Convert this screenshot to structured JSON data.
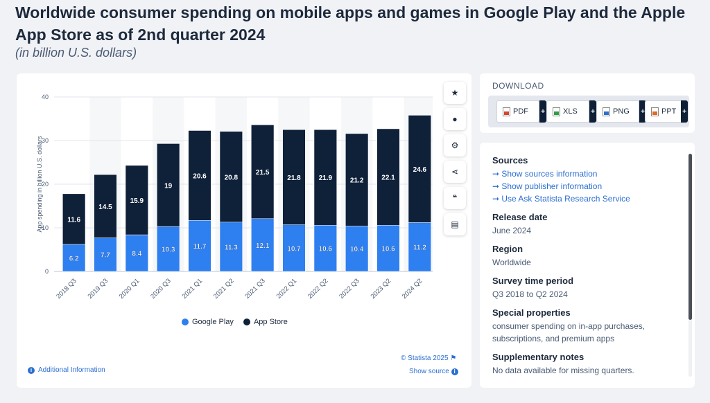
{
  "title": "Worldwide consumer spending on mobile apps and games in Google Play and the Apple App Store as of 2nd quarter 2024",
  "subtitle": "(in billion U.S. dollars)",
  "tools": [
    {
      "icon": "star-icon",
      "glyph": "★"
    },
    {
      "icon": "bell-icon",
      "glyph": "●"
    },
    {
      "icon": "gear-icon",
      "glyph": "⚙"
    },
    {
      "icon": "share-icon",
      "glyph": "⋖"
    },
    {
      "icon": "quote-icon",
      "glyph": "❝"
    },
    {
      "icon": "print-icon",
      "glyph": "▤"
    }
  ],
  "chart_data": {
    "type": "bar",
    "stacked": true,
    "categories": [
      "2018 Q3",
      "2019 Q3",
      "2020 Q1",
      "2020 Q3",
      "2021 Q1",
      "2021 Q2",
      "2021 Q3",
      "2022 Q1",
      "2022 Q2",
      "2022 Q3",
      "2023 Q2",
      "2024 Q2"
    ],
    "series": [
      {
        "name": "Google Play",
        "color": "#2e7ff0",
        "values": [
          6.2,
          7.7,
          8.4,
          10.3,
          11.7,
          11.3,
          12.1,
          10.7,
          10.6,
          10.4,
          10.6,
          11.2
        ]
      },
      {
        "name": "App Store",
        "color": "#0f2039",
        "values": [
          11.6,
          14.5,
          15.9,
          19,
          20.6,
          20.8,
          21.5,
          21.8,
          21.9,
          21.2,
          22.1,
          24.6
        ]
      }
    ],
    "ylabel": "App spending in billion U.S. dollars",
    "xlabel": "",
    "ylim": [
      0,
      40
    ],
    "yticks": [
      0,
      10,
      20,
      30,
      40
    ],
    "grid": true,
    "legend_position": "bottom"
  },
  "legend": [
    {
      "label": "Google Play",
      "color": "#2e7ff0"
    },
    {
      "label": "App Store",
      "color": "#0f2039"
    }
  ],
  "copyright": "© Statista 2025",
  "show_source": "Show source",
  "additional_info": "Additional Information",
  "download": {
    "title": "DOWNLOAD",
    "buttons": [
      {
        "label": "PDF",
        "color": "#d9452b"
      },
      {
        "label": "XLS",
        "color": "#2f9e44"
      },
      {
        "label": "PNG",
        "color": "#2b6fd1"
      },
      {
        "label": "PPT",
        "color": "#e06a1f"
      }
    ],
    "plus": "+"
  },
  "info": {
    "sources_h": "Sources",
    "links": [
      "Show sources information",
      "Show publisher information",
      "Use Ask Statista Research Service"
    ],
    "release_h": "Release date",
    "release": "June 2024",
    "region_h": "Region",
    "region": "Worldwide",
    "survey_h": "Survey time period",
    "survey": "Q3 2018 to Q2 2024",
    "special_h": "Special properties",
    "special": "consumer spending on in-app purchases, subscriptions, and premium apps",
    "supp_h": "Supplementary notes",
    "supp": "No data available for missing quarters."
  }
}
